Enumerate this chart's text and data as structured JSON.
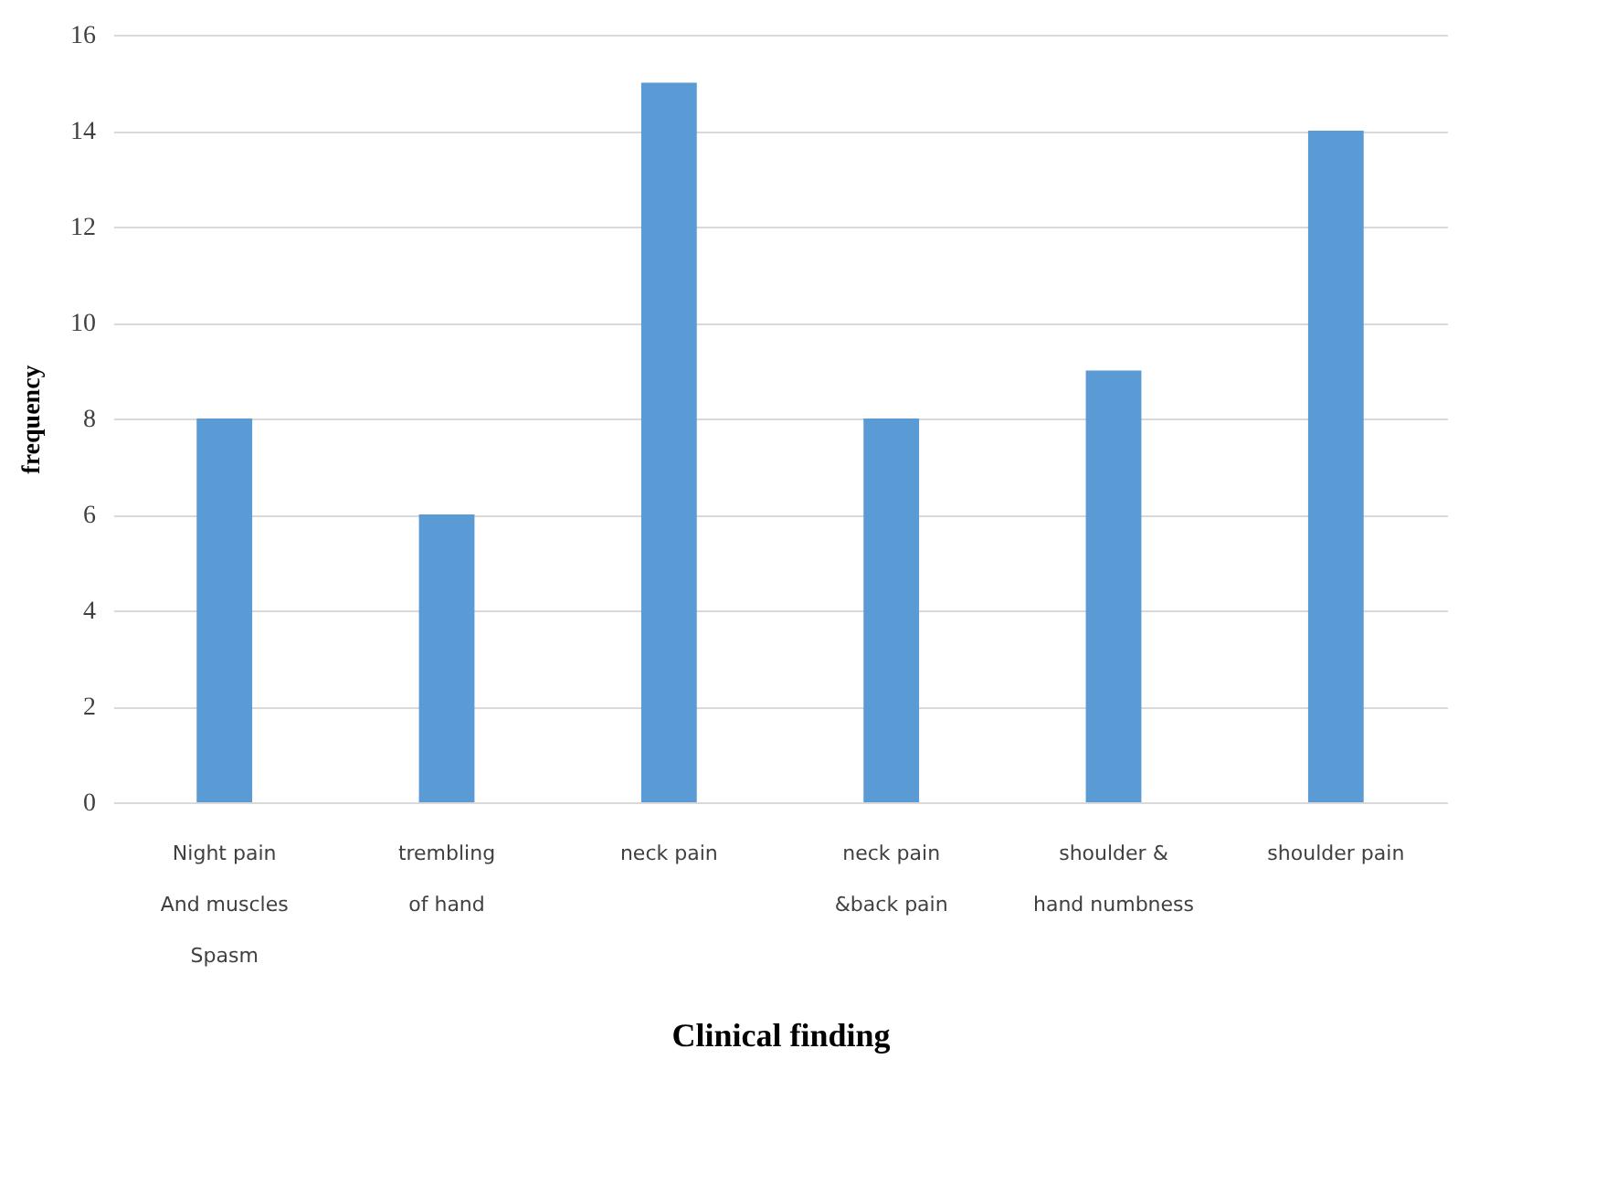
{
  "chart_data": {
    "type": "bar",
    "xlabel": "Clinical finding",
    "ylabel": "frequency",
    "categories": [
      "Night pain\nAnd muscles\nSpasm",
      "trembling\nof hand",
      "neck pain",
      "neck pain\n&back pain",
      "shoulder &\nhand numbness",
      "shoulder pain"
    ],
    "values": [
      8,
      6,
      15,
      8,
      9,
      14
    ],
    "color": "#5b9bd5",
    "ylim": [
      0,
      16
    ],
    "yticks": [
      0,
      2,
      4,
      6,
      8,
      10,
      12,
      14,
      16
    ],
    "grid": "y"
  }
}
